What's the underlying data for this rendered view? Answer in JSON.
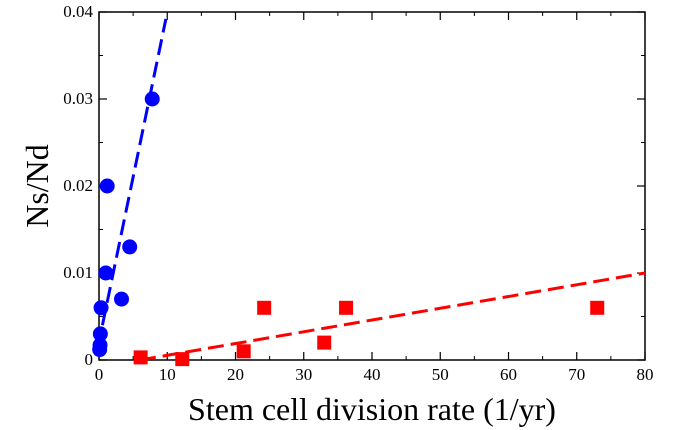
{
  "chart_data": {
    "type": "scatter",
    "title": "",
    "xlabel": "Stem cell division rate (1/yr)",
    "ylabel": "Ns/Nd",
    "xlim": [
      0,
      80
    ],
    "ylim": [
      0,
      0.04
    ],
    "x_ticks": [
      "0",
      "10",
      "20",
      "30",
      "40",
      "50",
      "60",
      "70",
      "80"
    ],
    "y_ticks": [
      "0",
      "0.01",
      "0.02",
      "0.03",
      "0.04"
    ],
    "grid": false,
    "legend": "none",
    "series": [
      {
        "marker": "circle",
        "color": "#0000ff",
        "points": [
          {
            "x": 0.1,
            "y": 0.0012
          },
          {
            "x": 0.15,
            "y": 0.0017
          },
          {
            "x": 0.2,
            "y": 0.003
          },
          {
            "x": 0.3,
            "y": 0.006
          },
          {
            "x": 1.0,
            "y": 0.01
          },
          {
            "x": 1.2,
            "y": 0.02
          },
          {
            "x": 3.3,
            "y": 0.007
          },
          {
            "x": 4.5,
            "y": 0.013
          },
          {
            "x": 7.8,
            "y": 0.03
          }
        ],
        "fit_line": {
          "x": [
            0.5,
            9.8
          ],
          "y": [
            0.004,
            0.0392
          ],
          "style": "dashed"
        }
      },
      {
        "marker": "square",
        "color": "#ff0000",
        "points": [
          {
            "x": 6.1,
            "y": 0.0003
          },
          {
            "x": 12.2,
            "y": 0.0001
          },
          {
            "x": 21.2,
            "y": 0.001
          },
          {
            "x": 24.2,
            "y": 0.006
          },
          {
            "x": 33.0,
            "y": 0.002
          },
          {
            "x": 36.2,
            "y": 0.006
          },
          {
            "x": 73.0,
            "y": 0.006
          }
        ],
        "fit_line": {
          "x": [
            6,
            80
          ],
          "y": [
            0.0,
            0.01
          ],
          "style": "dashed"
        }
      }
    ]
  }
}
